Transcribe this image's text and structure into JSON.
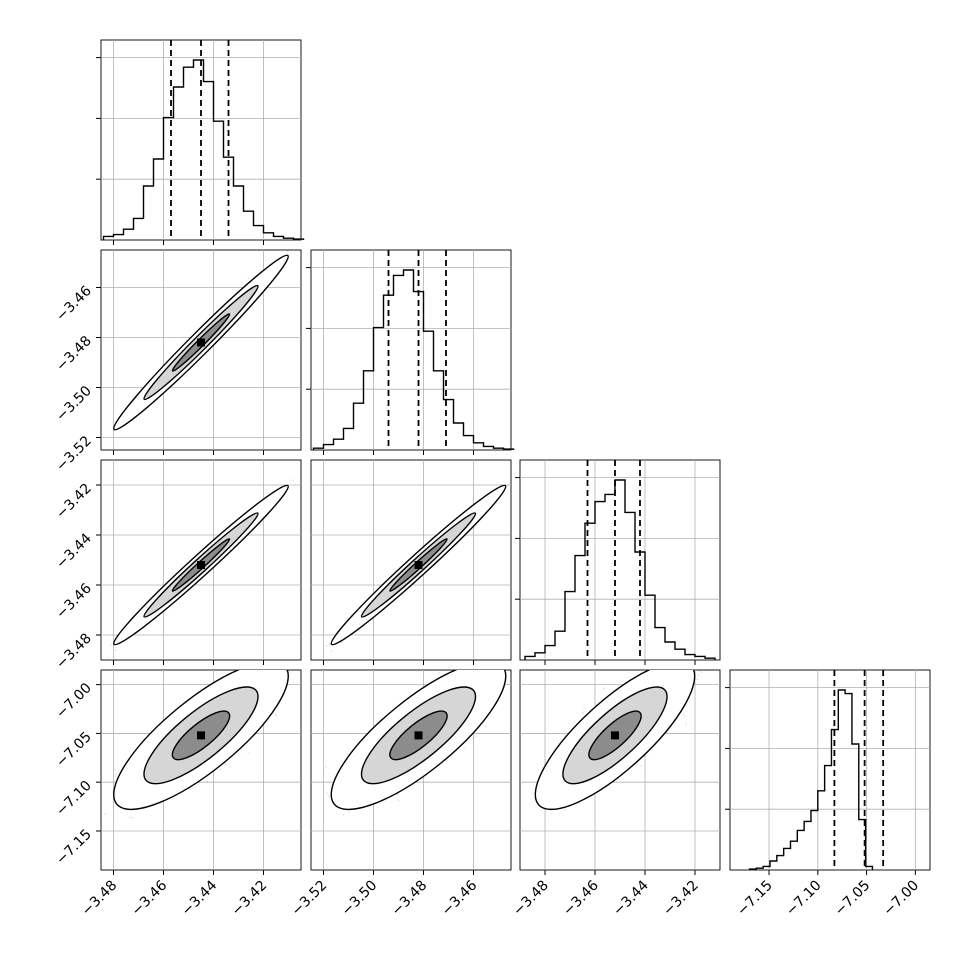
{
  "chart_data": {
    "type": "corner",
    "title": "",
    "grid": true,
    "parameters": [
      {
        "index": 0,
        "median": -3.445,
        "q16": -3.457,
        "q84": -3.434,
        "range": [
          -3.485,
          -3.405
        ],
        "ticks": [
          -3.48,
          -3.46,
          -3.44,
          -3.42
        ],
        "tick_labels": [
          "−3.48",
          "−3.46",
          "−3.44",
          "−3.42"
        ],
        "hist": {
          "bin_start": -3.484,
          "bin_width": 0.004,
          "counts": [
            0.02,
            0.03,
            0.06,
            0.12,
            0.3,
            0.45,
            0.68,
            0.85,
            0.96,
            1.0,
            0.88,
            0.66,
            0.46,
            0.3,
            0.16,
            0.08,
            0.04,
            0.02,
            0.01,
            0.005
          ]
        }
      },
      {
        "index": 1,
        "median": -3.482,
        "q16": -3.494,
        "q84": -3.471,
        "range": [
          -3.525,
          -3.445
        ],
        "ticks": [
          -3.52,
          -3.5,
          -3.48,
          -3.46
        ],
        "tick_labels": [
          "−3.52",
          "−3.50",
          "−3.48",
          "−3.46"
        ],
        "hist": {
          "bin_start": -3.524,
          "bin_width": 0.004,
          "counts": [
            0.01,
            0.03,
            0.06,
            0.12,
            0.26,
            0.44,
            0.68,
            0.86,
            0.97,
            1.0,
            0.88,
            0.66,
            0.44,
            0.28,
            0.15,
            0.08,
            0.04,
            0.02,
            0.01,
            0.005
          ]
        }
      },
      {
        "index": 2,
        "median": -3.452,
        "q16": -3.463,
        "q84": -3.442,
        "range": [
          -3.49,
          -3.41
        ],
        "ticks": [
          -3.48,
          -3.46,
          -3.44,
          -3.42
        ],
        "tick_labels": [
          "−3.48",
          "−3.46",
          "−3.44",
          "−3.42"
        ],
        "hist": {
          "bin_start": -3.488,
          "bin_width": 0.004,
          "counts": [
            0.02,
            0.04,
            0.08,
            0.16,
            0.38,
            0.58,
            0.76,
            0.88,
            0.92,
            1.0,
            0.82,
            0.6,
            0.36,
            0.18,
            0.1,
            0.06,
            0.03,
            0.02,
            0.01
          ]
        }
      },
      {
        "index": 3,
        "median": -7.052,
        "q16": -7.083,
        "q84": -7.033,
        "range": [
          -7.19,
          -6.985
        ],
        "ticks": [
          -7.15,
          -7.1,
          -7.05,
          -7.0
        ],
        "tick_labels": [
          "−7.15",
          "−7.10",
          "−7.05",
          "−7.00"
        ],
        "hist": {
          "bin_start": -7.17,
          "bin_width": 0.007,
          "counts": [
            0.005,
            0.01,
            0.02,
            0.05,
            0.08,
            0.12,
            0.16,
            0.22,
            0.27,
            0.33,
            0.44,
            0.58,
            0.78,
            1.0,
            0.98,
            0.7,
            0.28,
            0.02
          ]
        }
      }
    ],
    "pair_correlations": {
      "1_0": 0.985,
      "2_0": 0.985,
      "2_1": 0.985,
      "3_0": 0.8,
      "3_1": 0.8,
      "3_2": 0.8
    },
    "dispersion": {
      "0": 0.0115,
      "1": 0.0115,
      "2": 0.0105,
      "3": 0.025
    },
    "contour_levels": [
      0.39,
      0.86,
      0.99
    ]
  }
}
